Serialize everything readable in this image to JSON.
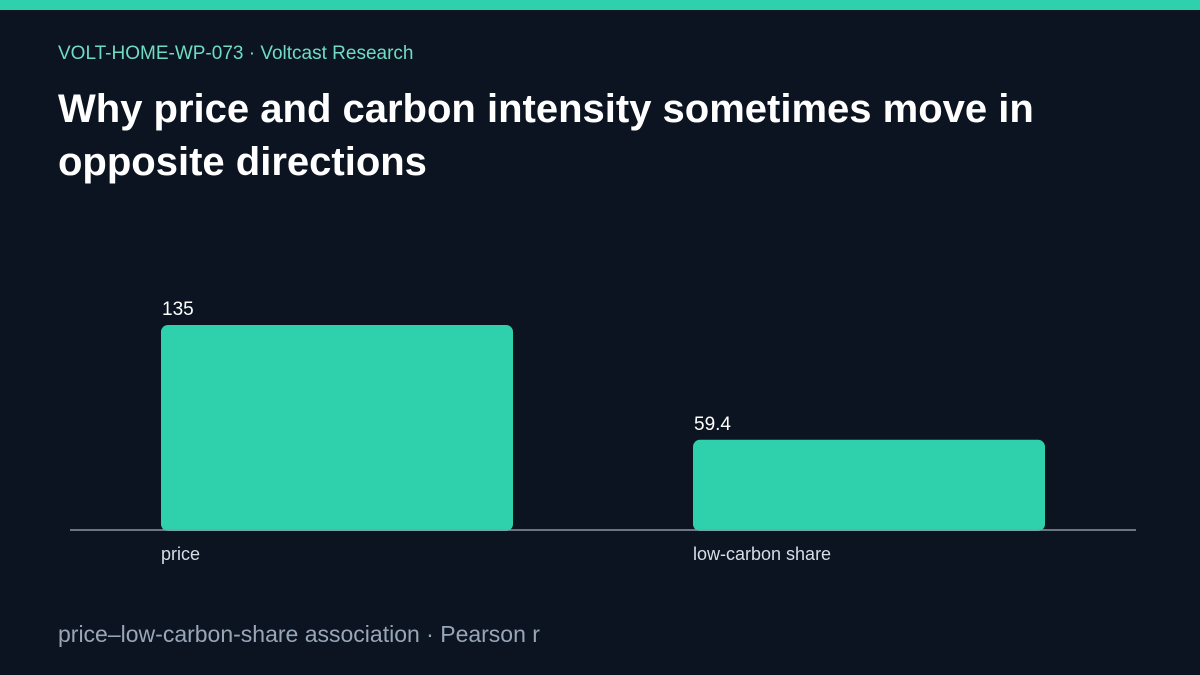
{
  "header": {
    "kicker": "VOLT-HOME-WP-073 · Voltcast Research",
    "title": "Why price and carbon intensity sometimes move in opposite directions"
  },
  "footer": {
    "caption": "price–low-carbon-share association · Pearson r"
  },
  "colors": {
    "background": "#0b1420",
    "accent": "#2fd1ad",
    "bar": "#2fd1ad",
    "axis": "#8a97a8"
  },
  "chart_data": {
    "type": "bar",
    "categories": [
      "price",
      "low-carbon share"
    ],
    "values": [
      135,
      59.4
    ],
    "value_labels": [
      "135",
      "59.4"
    ],
    "ylim": [
      0,
      135
    ],
    "grid": false,
    "legend": "none"
  }
}
